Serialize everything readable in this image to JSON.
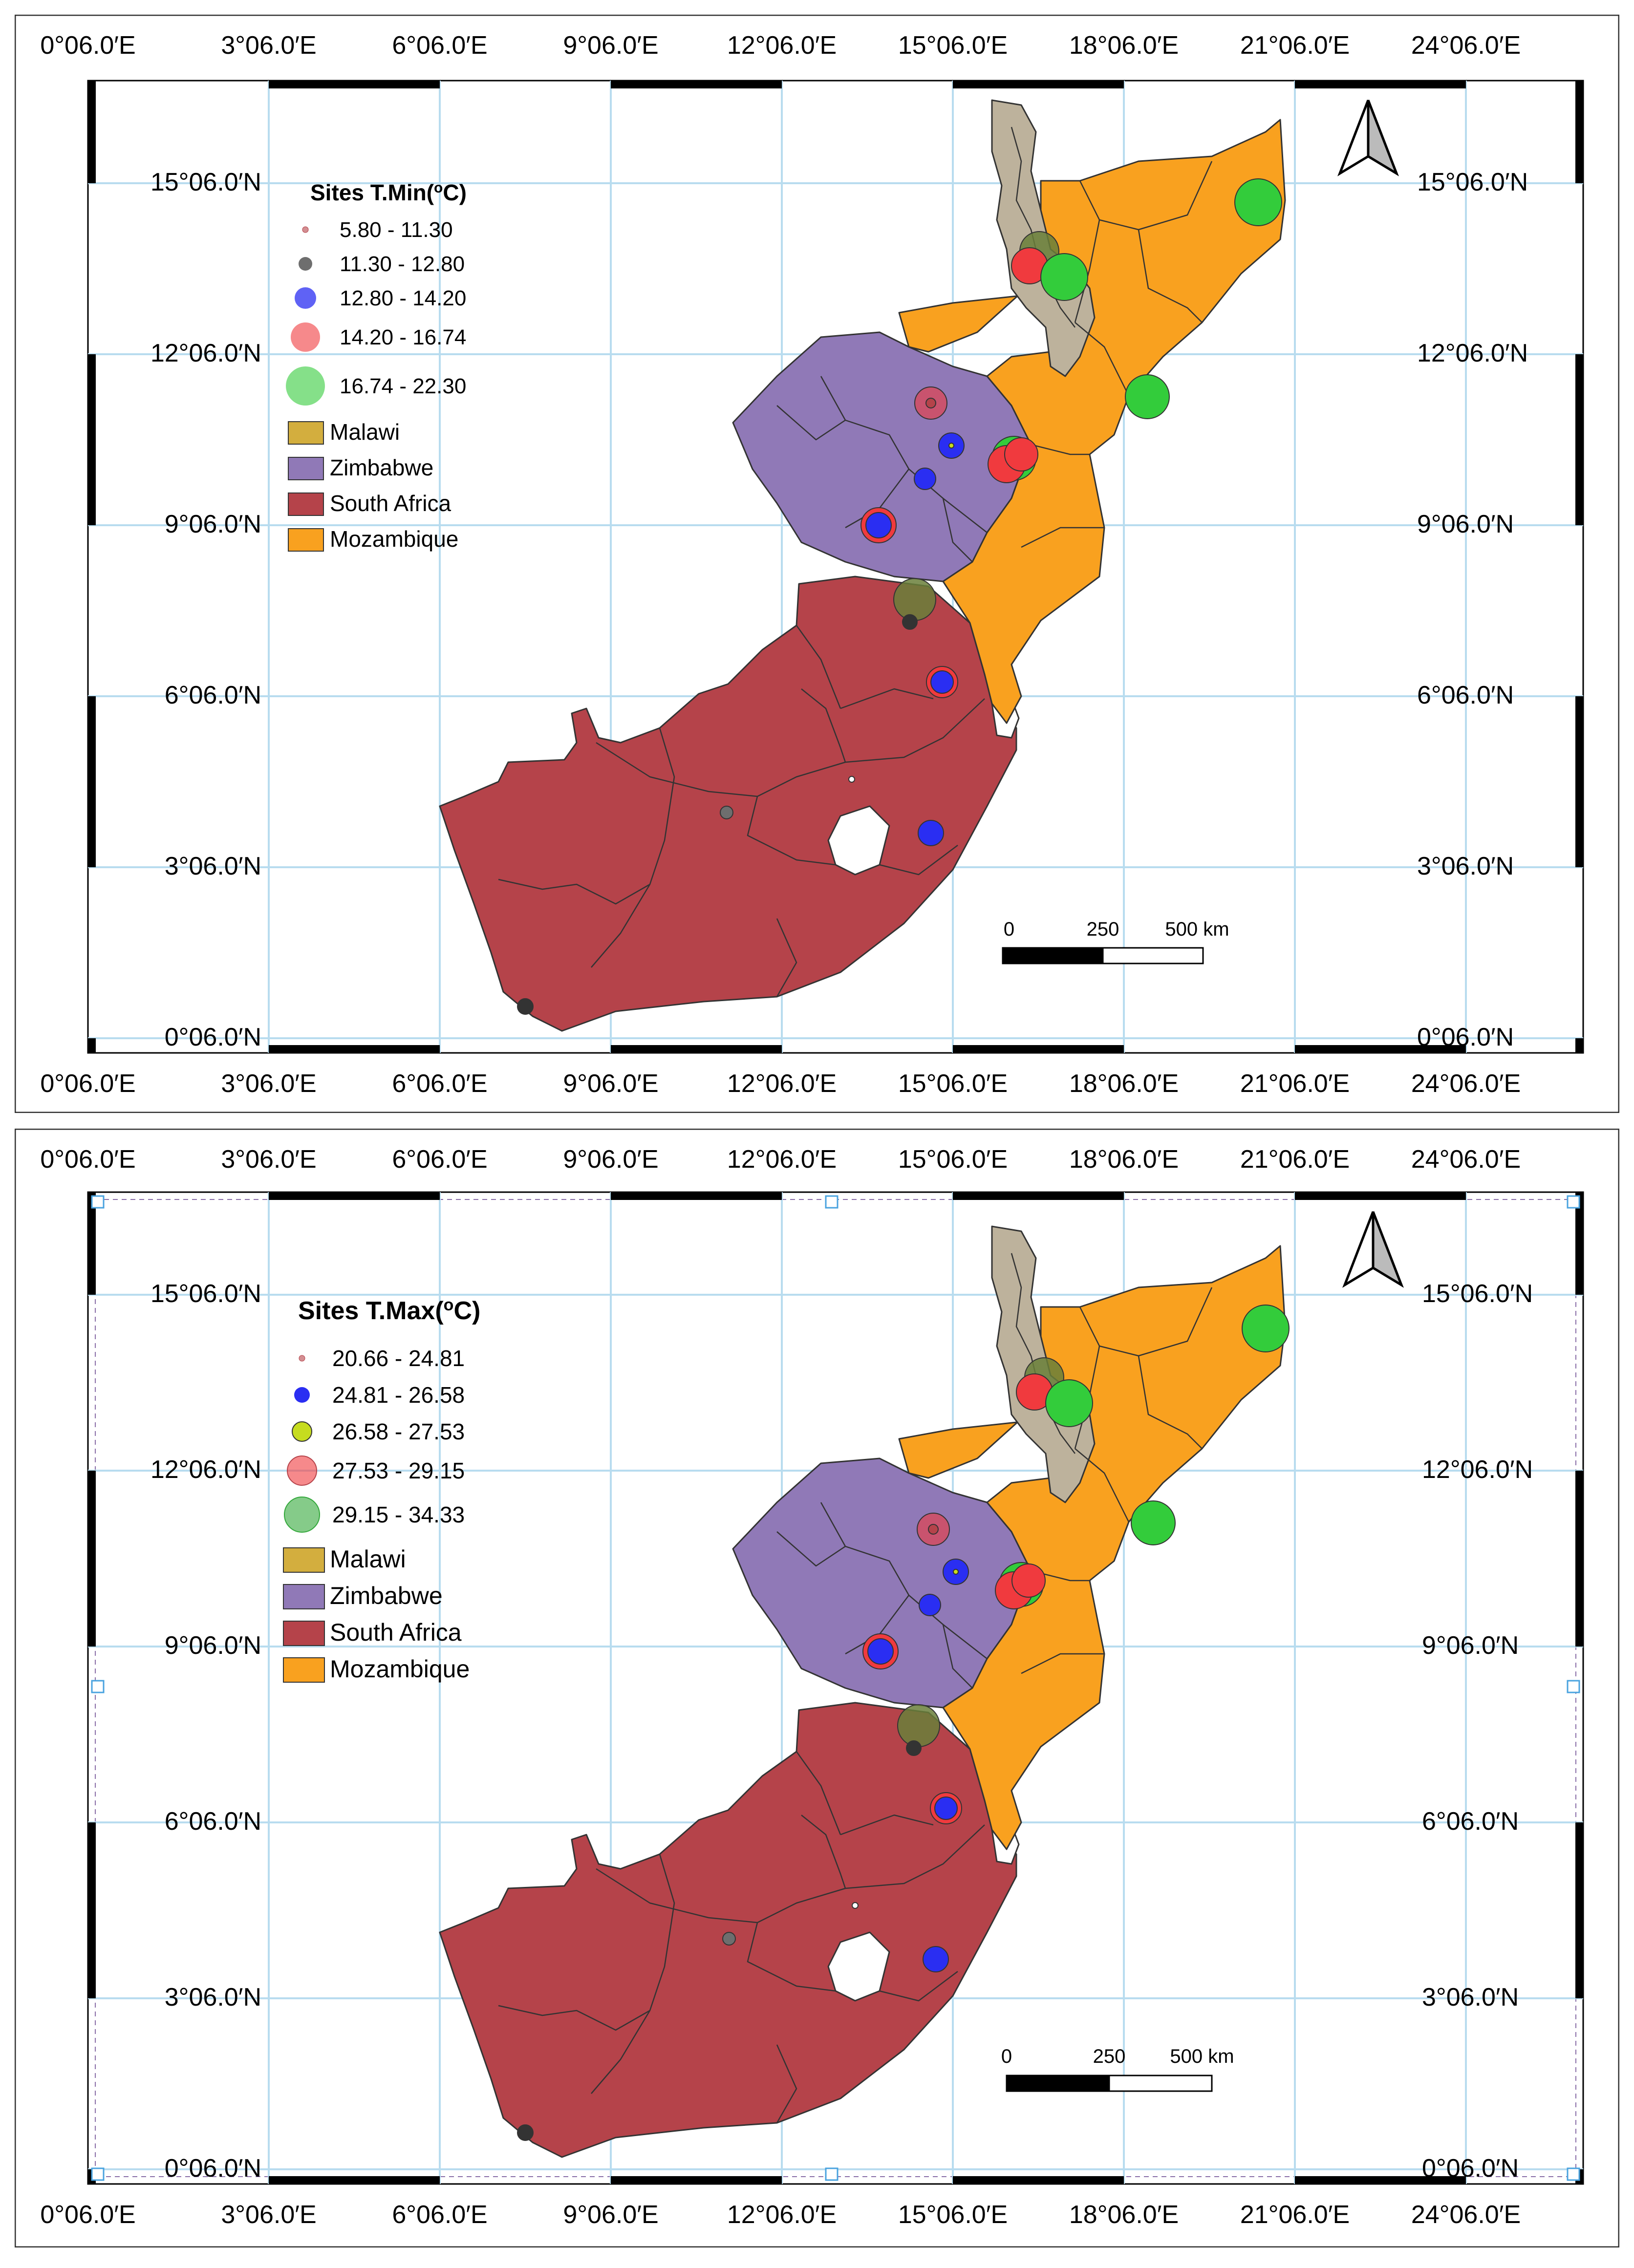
{
  "colors": {
    "malawi": "#bdb29c",
    "malawi_legend": "#d3ae3e",
    "zimbabwe": "#9079b7",
    "south_africa": "#b5434a",
    "mozambique": "#f9a11f",
    "grid": "#b8dcef",
    "marker_small": "#b5434a",
    "marker_gray": "#6e6e6e",
    "marker_blue": "#2a2ef2",
    "marker_yellow": "#c6dc1f",
    "marker_red": "#f03a3e",
    "marker_green": "#33cc3b",
    "marker_olive": "#6a7f3a"
  },
  "icons": [
    "north-arrow-icon"
  ],
  "ticks": {
    "lon": [
      "0°06.0′E",
      "3°06.0′E",
      "6°06.0′E",
      "9°06.0′E",
      "12°06.0′E",
      "15°06.0′E",
      "18°06.0′E",
      "21°06.0′E",
      "24°06.0′E"
    ],
    "lat": [
      "0°06.0′N",
      "3°06.0′N",
      "6°06.0′N",
      "9°06.0′N",
      "12°06.0′N",
      "15°06.0′N"
    ]
  },
  "scalebar": {
    "labels": [
      "0",
      "250",
      "500 km"
    ]
  },
  "countries": [
    "Malawi",
    "Zimbabwe",
    "South Africa",
    "Mozambique"
  ],
  "maps": [
    {
      "legend_title_prefix": "Sites T.Min(",
      "legend_title_sup": "o",
      "legend_title_suffix": "C)",
      "classes": [
        "5.80 - 11.30",
        "11.30 - 12.80",
        "12.80 - 14.20",
        "14.20 - 16.74",
        "16.74 - 22.30"
      ]
    },
    {
      "legend_title_prefix": "Sites T.Max(",
      "legend_title_sup": "o",
      "legend_title_suffix": "C)",
      "classes": [
        "20.66 - 24.81",
        "24.81 - 26.58",
        "26.58 - 27.53",
        "27.53 - 29.15",
        "29.15 - 34.33"
      ]
    }
  ]
}
